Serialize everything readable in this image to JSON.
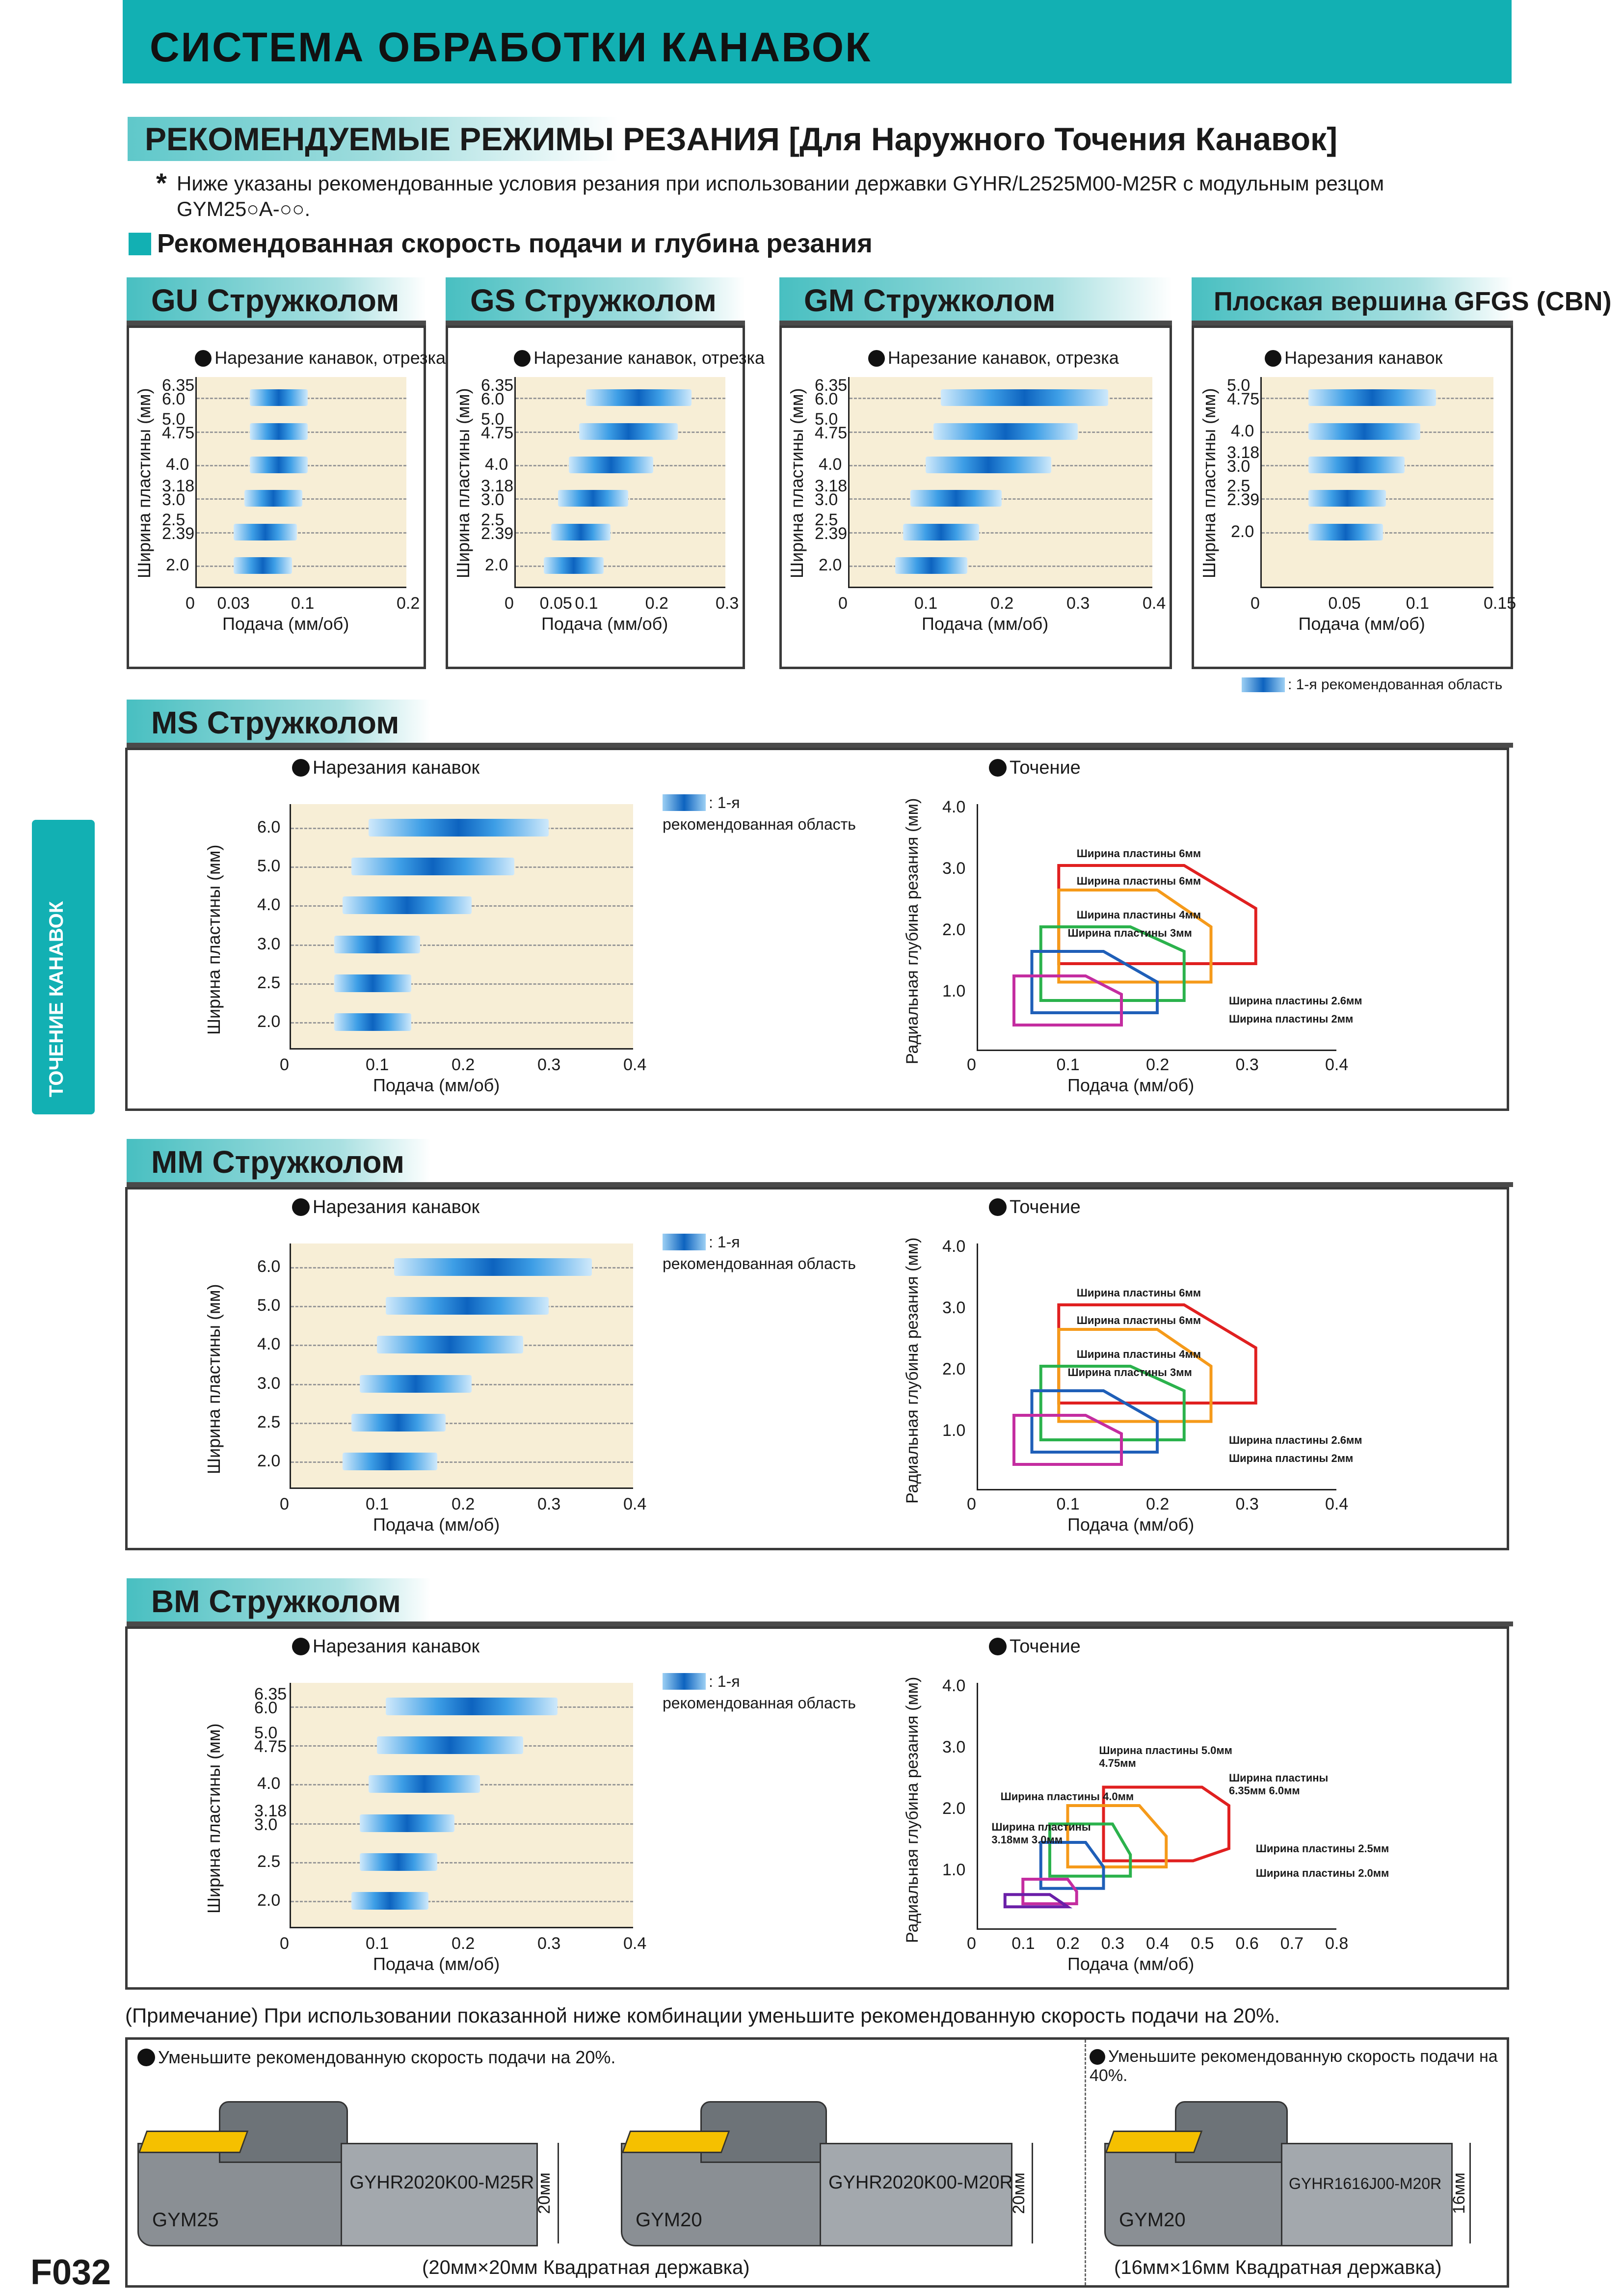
{
  "header": {
    "title": "СИСТЕМА ОБРАБОТКИ КАНАВОК"
  },
  "subheader": {
    "title": "РЕКОМЕНДУЕМЫЕ РЕЖИМЫ РЕЗАНИЯ [Для Наружного Точения Канавок]"
  },
  "note": {
    "star": "*",
    "line1": "Ниже указаны рекомендованные условия резания при использовании державки GYHR/L2525M00-M25R с модульным резцом",
    "line2": "GYM25○A-○○."
  },
  "section_heading": "Рекомендованная скорость подачи и глубина резания",
  "side_tab": "ТОЧЕНИЕ КАНАВОК",
  "page_number": "F032",
  "common": {
    "ylabel": "Ширина пластины (мм)",
    "xlabel": "Подача (мм/об)",
    "depth_label": "Радиальная глубина резания (мм)",
    "legend_text": ": 1-я рекомендованная область",
    "legend_a": ": 1-я",
    "legend_b": "рекомендованная область",
    "turning_title": "Точение",
    "grooving_title": "Нарезания канавок",
    "grooving_parting": "Нарезание канавок, отрезка",
    "grooving_only": "Нарезания канавок"
  },
  "top_charts": [
    {
      "header": "GU Стружколом",
      "subtitle": "Нарезание канавок, отрезка",
      "yticks": [
        {
          "a": "6.35",
          "b": "6.0"
        },
        {
          "a": "5.0",
          "b": "4.75"
        },
        {
          "a": "4.0",
          "b": ""
        },
        {
          "a": "3.18",
          "b": "3.0"
        },
        {
          "a": "2.5",
          "b": "2.39"
        },
        {
          "a": "2.0",
          "b": ""
        }
      ],
      "xticks": [
        "0",
        "0.03",
        "0.1",
        "0.2"
      ],
      "xmax": 0.2,
      "xtick_vals": [
        0,
        0.03,
        0.1,
        0.2
      ],
      "ranges": [
        [
          0.05,
          0.105
        ],
        [
          0.05,
          0.105
        ],
        [
          0.05,
          0.105
        ],
        [
          0.045,
          0.1
        ],
        [
          0.035,
          0.095
        ],
        [
          0.035,
          0.09
        ]
      ]
    },
    {
      "header": "GS Стружколом",
      "subtitle": "Нарезание канавок, отрезка",
      "yticks": [
        {
          "a": "6.35",
          "b": "6.0"
        },
        {
          "a": "5.0",
          "b": "4.75"
        },
        {
          "a": "4.0",
          "b": ""
        },
        {
          "a": "3.18",
          "b": "3.0"
        },
        {
          "a": "2.5",
          "b": "2.39"
        },
        {
          "a": "2.0",
          "b": ""
        }
      ],
      "xticks": [
        "0",
        "0.05",
        "0.1",
        "0.2",
        "0.3"
      ],
      "xmax": 0.3,
      "xtick_vals": [
        0,
        0.05,
        0.1,
        0.2,
        0.3
      ],
      "ranges": [
        [
          0.1,
          0.25
        ],
        [
          0.09,
          0.23
        ],
        [
          0.075,
          0.195
        ],
        [
          0.06,
          0.16
        ],
        [
          0.05,
          0.135
        ],
        [
          0.04,
          0.125
        ]
      ]
    },
    {
      "header": "GM Стружколом",
      "subtitle": "Нарезание канавок, отрезка",
      "yticks": [
        {
          "a": "6.35",
          "b": "6.0"
        },
        {
          "a": "5.0",
          "b": "4.75"
        },
        {
          "a": "4.0",
          "b": ""
        },
        {
          "a": "3.18",
          "b": "3.0"
        },
        {
          "a": "2.5",
          "b": "2.39"
        },
        {
          "a": "2.0",
          "b": ""
        }
      ],
      "xticks": [
        "0",
        "0.1",
        "0.2",
        "0.3",
        "0.4"
      ],
      "xmax": 0.4,
      "xtick_vals": [
        0,
        0.1,
        0.2,
        0.3,
        0.4
      ],
      "ranges": [
        [
          0.12,
          0.34
        ],
        [
          0.11,
          0.3
        ],
        [
          0.1,
          0.265
        ],
        [
          0.08,
          0.2
        ],
        [
          0.07,
          0.17
        ],
        [
          0.06,
          0.155
        ]
      ]
    },
    {
      "header": "Плоская вершина GFGS (CBN)",
      "subtitle": "Нарезания канавок",
      "yticks": [
        {
          "a": "5.0",
          "b": "4.75"
        },
        {
          "a": "4.0",
          "b": ""
        },
        {
          "a": "3.18",
          "b": "3.0"
        },
        {
          "a": "2.5",
          "b": "2.39"
        },
        {
          "a": "2.0",
          "b": ""
        }
      ],
      "xticks": [
        "0",
        "0.05",
        "0.1",
        "0.15"
      ],
      "xmax": 0.15,
      "xtick_vals": [
        0,
        0.05,
        0.1,
        0.15
      ],
      "ranges": [
        [
          0.03,
          0.112
        ],
        [
          0.03,
          0.102
        ],
        [
          0.03,
          0.092
        ],
        [
          0.03,
          0.08
        ],
        [
          0.03,
          0.078
        ]
      ]
    }
  ],
  "top_legend": ": 1-я рекомендованная область",
  "mid_charts": [
    {
      "header": "MS Стружколом",
      "grooving": {
        "yticks": [
          "6.0",
          "5.0",
          "4.0",
          "3.0",
          "2.5",
          "2.0"
        ],
        "xticks": [
          "0",
          "0.1",
          "0.2",
          "0.3",
          "0.4"
        ],
        "ranges": [
          [
            0.09,
            0.3
          ],
          [
            0.07,
            0.26
          ],
          [
            0.06,
            0.21
          ],
          [
            0.05,
            0.15
          ],
          [
            0.05,
            0.14
          ],
          [
            0.05,
            0.14
          ]
        ]
      },
      "turning": {
        "yticks": [
          "4.0",
          "3.0",
          "2.0",
          "1.0"
        ],
        "xticks": [
          "0",
          "0.1",
          "0.2",
          "0.3",
          "0.4"
        ],
        "labels": [
          "Ширина пластины 6мм",
          "Ширина пластины 6мм",
          "Ширина пластины 4мм",
          "Ширина пластины 3мм",
          "Ширина пластины 2.6мм",
          "Ширина пластины 2мм"
        ]
      }
    },
    {
      "header": "MM Стружколом",
      "grooving": {
        "yticks": [
          "6.0",
          "5.0",
          "4.0",
          "3.0",
          "2.5",
          "2.0"
        ],
        "xticks": [
          "0",
          "0.1",
          "0.2",
          "0.3",
          "0.4"
        ],
        "ranges": [
          [
            0.12,
            0.35
          ],
          [
            0.11,
            0.3
          ],
          [
            0.1,
            0.27
          ],
          [
            0.08,
            0.21
          ],
          [
            0.07,
            0.18
          ],
          [
            0.06,
            0.17
          ]
        ]
      },
      "turning": {
        "yticks": [
          "4.0",
          "3.0",
          "2.0",
          "1.0"
        ],
        "xticks": [
          "0",
          "0.1",
          "0.2",
          "0.3",
          "0.4"
        ],
        "labels": [
          "Ширина пластины 6мм",
          "Ширина пластины 6мм",
          "Ширина пластины 4мм",
          "Ширина пластины 3мм",
          "Ширина пластины 2.6мм",
          "Ширина пластины 2мм"
        ]
      }
    },
    {
      "header": "BM Стружколом",
      "grooving": {
        "yticks": [
          "6.35",
          "6.0",
          "5.0",
          "4.75",
          "4.0",
          "3.18",
          "3.0",
          "2.5",
          "2.0"
        ],
        "xticks": [
          "0",
          "0.1",
          "0.2",
          "0.3",
          "0.4"
        ],
        "ranges": [
          [
            0.11,
            0.31
          ],
          [
            0.1,
            0.27
          ],
          [
            0.09,
            0.22
          ],
          [
            0.08,
            0.19
          ],
          [
            0.08,
            0.17
          ],
          [
            0.07,
            0.16
          ]
        ]
      },
      "turning": {
        "yticks": [
          "4.0",
          "3.0",
          "2.0",
          "1.0"
        ],
        "xticks": [
          "0",
          "0.1",
          "0.2",
          "0.3",
          "0.4",
          "0.5",
          "0.6",
          "0.7",
          "0.8"
        ],
        "labels": [
          "Ширина пластины 5.0мм 4.75мм",
          "Ширина пластины 6.35мм 6.0мм",
          "Ширина пластины 4.0мм",
          "Ширина пластины 3.18мм 3.0мм",
          "Ширина пластины 2.5мм",
          "Ширина пластины 2.0мм"
        ]
      }
    }
  ],
  "bottom": {
    "note": "(Примечание) При использовании показанной ниже комбинации уменьшите рекомендованную скорость подачи на 20%.",
    "left_caption": "Уменьшите рекомендованную скорость подачи на 20%.",
    "right_caption": "Уменьшите рекомендованную скорость подачи на 40%.",
    "holders": [
      {
        "insert": "GYM25",
        "holder": "GYHR2020K00-M25R",
        "size": "20мм"
      },
      {
        "insert": "GYM20",
        "holder": "GYHR2020K00-M20R",
        "size": "20мм"
      },
      {
        "insert": "GYM20",
        "holder": "GYHR1616J00-M20R",
        "size": "16мм"
      }
    ],
    "left_footer": "(20мм×20мм Квадратная державка)",
    "right_footer": "(16мм×16мм Квадратная державка)"
  },
  "colors": {
    "accent": "#12b0b3",
    "bar": "#0d63bf",
    "plot_bg": "#f7eed6"
  }
}
